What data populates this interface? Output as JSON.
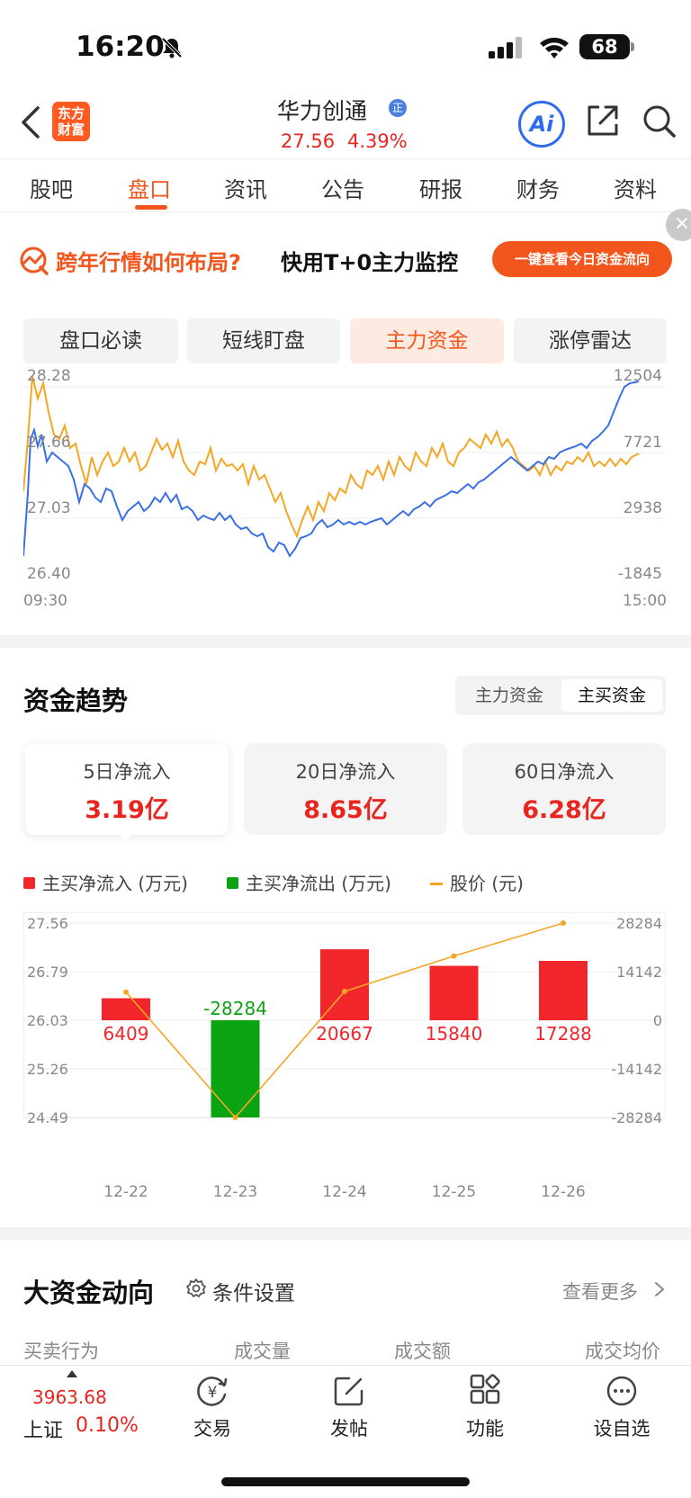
{
  "status_bar": {
    "time": "16:20",
    "battery": "68"
  },
  "header": {
    "logo_line1": "东方",
    "logo_line2": "财富",
    "stock_name": "华力创通",
    "verify_badge": "正",
    "price": "27.56",
    "change_pct": "4.39%",
    "ai_label": "Ai"
  },
  "tabs": [
    "股吧",
    "盘口",
    "资讯",
    "公告",
    "研报",
    "财务",
    "资料"
  ],
  "active_tab": "盘口",
  "promo": {
    "close": "×",
    "text_highlight": "跨年行情如何布局?",
    "text_main": "快用T+0主力监控",
    "button": "一键查看今日资金流向"
  },
  "sub_tabs": [
    "盘口必读",
    "短线盯盘",
    "主力资金",
    "涨停雷达"
  ],
  "active_sub_tab": "主力资金",
  "intraday": {
    "price_ticks": [
      "28.28",
      "27.66",
      "27.03",
      "26.40"
    ],
    "flow_ticks": [
      "12504",
      "7721",
      "2938",
      "-1845"
    ],
    "time_start": "09:30",
    "time_end": "15:00",
    "colors": {
      "price": "#f5a623",
      "flow": "#3b6fe6"
    }
  },
  "trend": {
    "title": "资金趋势",
    "toggle": [
      "主力资金",
      "主买资金"
    ],
    "toggle_active": "主买资金",
    "cards": [
      {
        "label": "5日净流入",
        "value": "3.19亿"
      },
      {
        "label": "20日净流入",
        "value": "8.65亿"
      },
      {
        "label": "60日净流入",
        "value": "6.28亿"
      }
    ],
    "legend": {
      "inflow": "主买净流入 (万元)",
      "outflow": "主买净流出 (万元)",
      "price": "股价 (元)"
    },
    "colors": {
      "inflow": "#f0262b",
      "outflow": "#0aa312",
      "price": "#f5a623"
    }
  },
  "chart_data": {
    "type": "bar",
    "categories": [
      "12-22",
      "12-23",
      "12-24",
      "12-25",
      "12-26"
    ],
    "series": [
      {
        "name": "主买净流入 (万元)",
        "values": [
          6409,
          -28284,
          20667,
          15840,
          17288
        ]
      },
      {
        "name": "股价 (元)",
        "values": [
          26.47,
          24.49,
          26.48,
          27.04,
          27.56
        ]
      }
    ],
    "y_left_ticks": [
      "27.56",
      "26.79",
      "26.03",
      "25.26",
      "24.49"
    ],
    "y_right_ticks": [
      "28284",
      "14142",
      "0",
      "-14142",
      "-28284"
    ],
    "ylim_left": [
      24.49,
      27.56
    ],
    "ylim_right": [
      -28284,
      28284
    ]
  },
  "big_funds": {
    "title": "大资金动向",
    "settings": "条件设置",
    "more": "查看更多",
    "columns": [
      "买卖行为",
      "成交量",
      "成交额",
      "成交均价"
    ]
  },
  "bottom_bar": {
    "index_value": "3963.68",
    "index_name": "上证",
    "index_change": "0.10%",
    "nav": [
      "交易",
      "发帖",
      "功能",
      "设自选"
    ]
  }
}
